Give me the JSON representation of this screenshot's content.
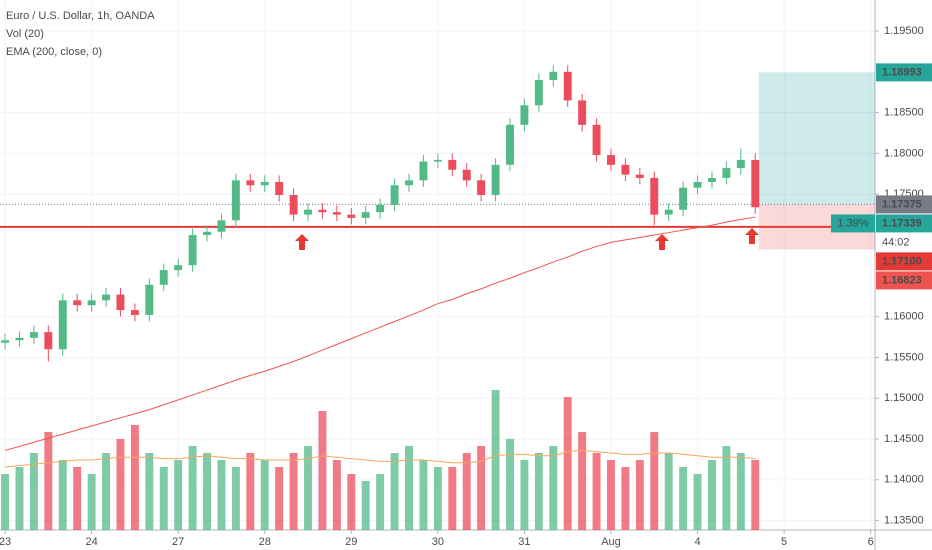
{
  "chart_data": {
    "type": "candlestick",
    "title": "Euro / U.S. Dollar, 1h, OANDA",
    "indicators": [
      "Vol (20)",
      "EMA (200, close, 0)"
    ],
    "x": [
      0,
      4,
      8,
      12,
      16,
      20,
      24,
      28,
      32,
      36,
      40,
      44,
      48,
      52,
      56,
      60,
      64,
      68,
      72,
      76,
      80,
      84,
      88,
      92,
      96,
      100,
      104,
      108,
      112,
      116,
      120,
      124,
      128,
      132,
      136,
      140,
      144,
      148,
      152,
      156,
      160,
      164,
      168,
      172,
      176,
      180,
      184,
      188,
      192,
      196,
      200,
      204,
      208
    ],
    "open": [
      1.1568,
      1.1571,
      1.1574,
      1.1581,
      1.156,
      1.162,
      1.1614,
      1.162,
      1.1627,
      1.1608,
      1.1602,
      1.1639,
      1.1657,
      1.1663,
      1.17,
      1.1704,
      1.1718,
      1.1767,
      1.1761,
      1.1765,
      1.1749,
      1.1725,
      1.1731,
      1.1728,
      1.1725,
      1.1721,
      1.1728,
      1.1737,
      1.1761,
      1.1767,
      1.179,
      1.1792,
      1.178,
      1.1767,
      1.1749,
      1.1786,
      1.1835,
      1.1859,
      1.189,
      1.19,
      1.1865,
      1.1835,
      1.1798,
      1.1786,
      1.1774,
      1.177,
      1.1725,
      1.1731,
      1.1758,
      1.1765,
      1.177,
      1.1782,
      1.1792
    ],
    "high": [
      1.1579,
      1.1582,
      1.1589,
      1.1589,
      1.1628,
      1.1628,
      1.1628,
      1.1635,
      1.1635,
      1.1616,
      1.1647,
      1.1665,
      1.1671,
      1.1708,
      1.1712,
      1.1726,
      1.1775,
      1.1775,
      1.1773,
      1.1773,
      1.1757,
      1.1739,
      1.1739,
      1.1736,
      1.1733,
      1.1736,
      1.1745,
      1.1769,
      1.1775,
      1.1798,
      1.18,
      1.18,
      1.1788,
      1.1775,
      1.1794,
      1.1843,
      1.1867,
      1.1898,
      1.1908,
      1.1908,
      1.1873,
      1.1843,
      1.1806,
      1.1794,
      1.1782,
      1.1778,
      1.1739,
      1.1766,
      1.1773,
      1.1778,
      1.179,
      1.1806,
      1.18
    ],
    "low": [
      1.156,
      1.1563,
      1.1566,
      1.1545,
      1.1552,
      1.1606,
      1.1606,
      1.1612,
      1.16,
      1.1594,
      1.1594,
      1.1631,
      1.1649,
      1.1655,
      1.1692,
      1.1696,
      1.171,
      1.1753,
      1.1753,
      1.1741,
      1.1717,
      1.1717,
      1.172,
      1.1717,
      1.1713,
      1.1713,
      1.172,
      1.1729,
      1.1753,
      1.1759,
      1.1782,
      1.1772,
      1.1759,
      1.1741,
      1.1741,
      1.1778,
      1.1827,
      1.1851,
      1.1882,
      1.1857,
      1.1827,
      1.179,
      1.1778,
      1.1766,
      1.1762,
      1.1712,
      1.1717,
      1.1723,
      1.175,
      1.1757,
      1.1762,
      1.1774,
      1.1726
    ],
    "close": [
      1.1571,
      1.1574,
      1.1581,
      1.156,
      1.162,
      1.1614,
      1.162,
      1.1627,
      1.1608,
      1.1602,
      1.1639,
      1.1657,
      1.1663,
      1.17,
      1.1704,
      1.1718,
      1.1767,
      1.1761,
      1.1765,
      1.1749,
      1.1725,
      1.1731,
      1.1728,
      1.1725,
      1.1721,
      1.1728,
      1.1737,
      1.1761,
      1.1767,
      1.179,
      1.1792,
      1.178,
      1.1767,
      1.1749,
      1.1786,
      1.1835,
      1.1859,
      1.189,
      1.19,
      1.1865,
      1.1835,
      1.1798,
      1.1786,
      1.1774,
      1.177,
      1.1725,
      1.1731,
      1.1758,
      1.1765,
      1.177,
      1.1782,
      1.1792,
      1.1734
    ],
    "volume": [
      40,
      45,
      55,
      70,
      50,
      45,
      40,
      55,
      65,
      75,
      55,
      45,
      50,
      60,
      55,
      50,
      45,
      55,
      50,
      45,
      55,
      60,
      85,
      50,
      40,
      35,
      40,
      55,
      60,
      50,
      45,
      45,
      55,
      60,
      100,
      65,
      50,
      55,
      60,
      95,
      70,
      55,
      50,
      45,
      50,
      70,
      55,
      45,
      40,
      50,
      60,
      55,
      50
    ],
    "volume_ma": [
      45,
      46,
      47,
      48,
      49,
      50,
      50,
      51,
      52,
      52,
      52,
      51,
      51,
      52,
      53,
      52,
      51,
      51,
      50,
      50,
      50,
      51,
      53,
      52,
      51,
      50,
      49,
      49,
      50,
      50,
      49,
      48,
      48,
      49,
      53,
      54,
      54,
      53,
      53,
      56,
      57,
      56,
      55,
      54,
      54,
      55,
      55,
      54,
      53,
      52,
      52,
      52,
      51
    ],
    "ema": [
      1.1436,
      1.1441,
      1.1446,
      1.1451,
      1.1456,
      1.1461,
      1.1466,
      1.1471,
      1.1476,
      1.1481,
      1.1486,
      1.1492,
      1.1498,
      1.1504,
      1.151,
      1.1516,
      1.1522,
      1.1528,
      1.1533,
      1.1539,
      1.1545,
      1.1552,
      1.1559,
      1.1566,
      1.1573,
      1.158,
      1.1587,
      1.1594,
      1.1601,
      1.1608,
      1.1616,
      1.1621,
      1.1628,
      1.1634,
      1.1641,
      1.1647,
      1.1654,
      1.166,
      1.1667,
      1.1673,
      1.168,
      1.1686,
      1.1691,
      1.1694,
      1.1697,
      1.17,
      1.1703,
      1.1706,
      1.1709,
      1.1712,
      1.1716,
      1.1719,
      1.1722
    ],
    "up_color": "#53b987",
    "down_color": "#eb4d5c",
    "ema_color": "#ef5350",
    "volume_ma_color": "#f6a75b",
    "xlim": [
      -1.4,
      241.2
    ],
    "ylim": [
      1.13385,
      1.1988
    ],
    "vlim": [
      0,
      100
    ],
    "grid": true,
    "xticks": [
      {
        "value": 0,
        "label": "23"
      },
      {
        "value": 24,
        "label": "24"
      },
      {
        "value": 48,
        "label": "27"
      },
      {
        "value": 72,
        "label": "28"
      },
      {
        "value": 96,
        "label": "29"
      },
      {
        "value": 120,
        "label": "30"
      },
      {
        "value": 144,
        "label": "31"
      },
      {
        "value": 168,
        "label": "Aug"
      },
      {
        "value": 192,
        "label": "4"
      },
      {
        "value": 216,
        "label": "5"
      },
      {
        "value": 240,
        "label": "6"
      }
    ],
    "yticks": [
      {
        "value": 1.195,
        "label": "1.19500"
      },
      {
        "value": 1.185,
        "label": "1.18500"
      },
      {
        "value": 1.18,
        "label": "1.18000"
      },
      {
        "value": 1.175,
        "label": "1.17500"
      },
      {
        "value": 1.16,
        "label": "1.16000"
      },
      {
        "value": 1.155,
        "label": "1.15500"
      },
      {
        "value": 1.15,
        "label": "1.15000"
      },
      {
        "value": 1.145,
        "label": "1.14500"
      },
      {
        "value": 1.14,
        "label": "1.14000"
      },
      {
        "value": 1.135,
        "label": "1.13500"
      }
    ],
    "position": {
      "start": 209,
      "end": 241.2,
      "target": 1.18993,
      "entry": 1.17375,
      "stop": 1.16823,
      "label": "1.39%"
    },
    "hline": {
      "value": 1.171,
      "label": "1.17100",
      "color": "#e53935"
    },
    "last_price": {
      "value": 1.17339,
      "timer": "44:02"
    }
  }
}
